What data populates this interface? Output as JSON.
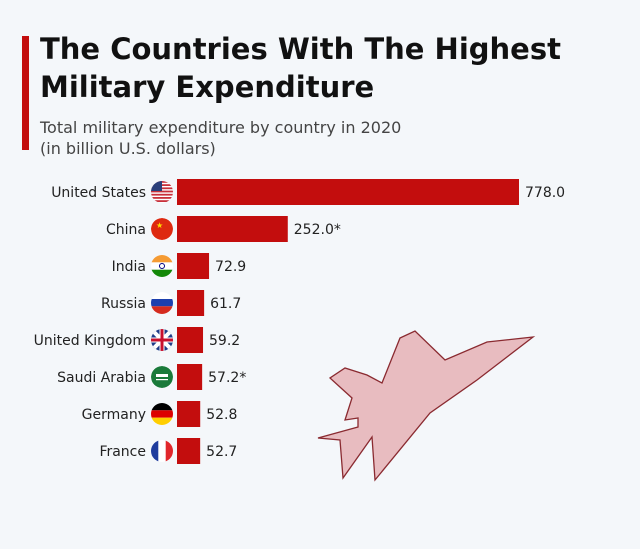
{
  "chart_data": {
    "type": "bar",
    "orientation": "horizontal",
    "title": "The Countries With The Highest Military Expenditure",
    "subtitle": "Total military expenditure by country in 2020",
    "subtitle2": "(in billion U.S. dollars)",
    "categories": [
      "United States",
      "China",
      "India",
      "Russia",
      "United Kingdom",
      "Saudi Arabia",
      "Germany",
      "France"
    ],
    "values": [
      778.0,
      252.0,
      72.9,
      61.7,
      59.2,
      57.2,
      52.8,
      52.7
    ],
    "value_labels": [
      "778.0",
      "252.0*",
      "72.9",
      "61.7",
      "59.2",
      "57.2*",
      "52.8",
      "52.7"
    ],
    "flag_icons": [
      "us-flag",
      "china-flag",
      "india-flag",
      "russia-flag",
      "uk-flag",
      "saudi-flag",
      "germany-flag",
      "france-flag"
    ],
    "bar_color": "#c30d0d",
    "grid": false,
    "decoration": "fighter-jet-icon"
  }
}
